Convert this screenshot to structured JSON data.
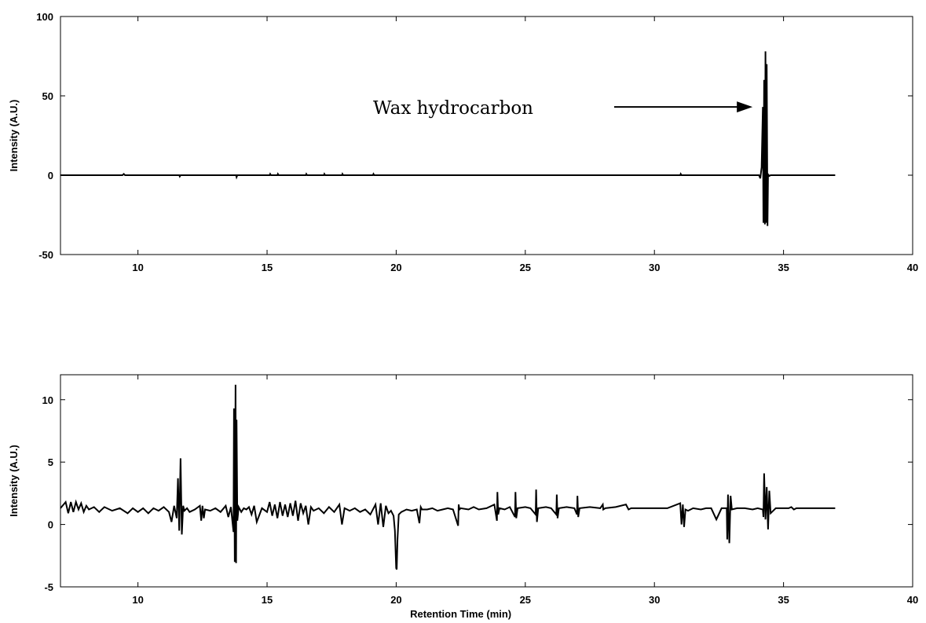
{
  "chart_data": [
    {
      "type": "line",
      "title": "",
      "xlabel": "",
      "ylabel": "Intensity (A.U.)",
      "xlim": [
        7,
        40
      ],
      "ylim": [
        -50,
        100
      ],
      "xticks": [
        10,
        15,
        20,
        25,
        30,
        35,
        40
      ],
      "xtick_labels": [
        "10",
        "15",
        "20",
        "25",
        "30",
        "35",
        "40"
      ],
      "yticks": [
        -50,
        0,
        50,
        100
      ],
      "ytick_labels": [
        "-50",
        "0",
        "50",
        "100"
      ],
      "grid": false,
      "annotations": [
        {
          "text": "Wax hydrocarbon",
          "arrow_to": {
            "x": 33.8,
            "y": 43
          }
        }
      ],
      "series": [
        {
          "x": [
            7.0,
            9.4,
            9.45,
            9.5,
            11.6,
            11.62,
            11.65,
            13.8,
            13.82,
            13.85,
            15.1,
            15.12,
            15.15,
            15.4,
            15.42,
            15.45,
            16.5,
            16.52,
            16.55,
            17.2,
            17.22,
            17.25,
            17.9,
            17.92,
            17.95,
            19.1,
            19.12,
            19.15,
            31.0,
            31.02,
            31.05,
            34.05,
            34.1,
            34.15,
            34.2,
            34.22,
            34.25,
            34.28,
            34.3,
            34.33,
            34.35,
            34.38,
            34.4,
            34.45,
            34.5,
            37.0
          ],
          "values": [
            0,
            0,
            0.8,
            0,
            0,
            -0.8,
            0,
            0,
            -1.2,
            0,
            0,
            0.8,
            0,
            0,
            0.8,
            0,
            0,
            0.8,
            0,
            0,
            0.8,
            0,
            0,
            0.8,
            0,
            0,
            0.8,
            0,
            0,
            0.8,
            0,
            0,
            -2,
            5,
            43,
            -30,
            60,
            -31,
            78,
            -30,
            70,
            -32,
            0.5,
            -0.5,
            0,
            0
          ]
        }
      ]
    },
    {
      "type": "line",
      "title": "",
      "xlabel": "Retention Time (min)",
      "ylabel": "Intensity (A.U.)",
      "xlim": [
        7,
        40
      ],
      "ylim": [
        -5,
        12
      ],
      "xticks": [
        10,
        15,
        20,
        25,
        30,
        35,
        40
      ],
      "xtick_labels": [
        "10",
        "15",
        "20",
        "25",
        "30",
        "35",
        "40"
      ],
      "yticks": [
        -5,
        0,
        5,
        10
      ],
      "ytick_labels": [
        "-5",
        "0",
        "5",
        "10"
      ],
      "grid": false,
      "series": [
        {
          "x": [
            7.0,
            7.2,
            7.3,
            7.4,
            7.5,
            7.6,
            7.7,
            7.8,
            7.9,
            8.0,
            8.1,
            8.3,
            8.5,
            8.7,
            9.0,
            9.3,
            9.6,
            9.8,
            10.0,
            10.2,
            10.4,
            10.6,
            10.8,
            11.0,
            11.2,
            11.3,
            11.4,
            11.5,
            11.55,
            11.6,
            11.65,
            11.7,
            11.75,
            11.8,
            11.9,
            12.0,
            12.2,
            12.4,
            12.45,
            12.5,
            12.55,
            12.6,
            12.8,
            13.0,
            13.2,
            13.4,
            13.5,
            13.6,
            13.7,
            13.72,
            13.75,
            13.78,
            13.8,
            13.82,
            13.85,
            13.9,
            14.0,
            14.1,
            14.2,
            14.3,
            14.4,
            14.5,
            14.6,
            14.8,
            15.0,
            15.1,
            15.2,
            15.3,
            15.4,
            15.5,
            15.6,
            15.7,
            15.8,
            15.9,
            16.0,
            16.1,
            16.2,
            16.3,
            16.4,
            16.5,
            16.6,
            16.7,
            16.8,
            17.0,
            17.2,
            17.4,
            17.6,
            17.8,
            17.9,
            18.0,
            18.2,
            18.4,
            18.6,
            18.8,
            19.0,
            19.2,
            19.3,
            19.4,
            19.5,
            19.6,
            19.7,
            19.8,
            19.9,
            19.95,
            20.0,
            20.02,
            20.05,
            20.1,
            20.2,
            20.4,
            20.6,
            20.8,
            20.9,
            20.95,
            21.0,
            21.2,
            21.4,
            21.6,
            21.8,
            22.0,
            22.2,
            22.4,
            22.42,
            22.45,
            22.5,
            22.8,
            23.0,
            23.2,
            23.5,
            23.8,
            23.9,
            23.92,
            23.95,
            24.0,
            24.2,
            24.4,
            24.6,
            24.62,
            24.65,
            24.7,
            25.0,
            25.2,
            25.4,
            25.42,
            25.45,
            25.5,
            25.8,
            26.0,
            26.2,
            26.22,
            26.25,
            26.3,
            26.6,
            26.9,
            27.0,
            27.02,
            27.05,
            27.1,
            27.5,
            27.9,
            28.0,
            28.02,
            28.1,
            28.5,
            28.9,
            29.0,
            29.1,
            29.5,
            30.0,
            30.5,
            31.0,
            31.05,
            31.1,
            31.15,
            31.2,
            31.3,
            31.5,
            31.8,
            32.0,
            32.2,
            32.4,
            32.6,
            32.8,
            32.82,
            32.85,
            32.9,
            32.95,
            33.0,
            33.2,
            33.5,
            33.8,
            34.0,
            34.2,
            34.22,
            34.25,
            34.3,
            34.35,
            34.4,
            34.45,
            34.5,
            34.7,
            35.0,
            35.2,
            35.3,
            35.4,
            35.5,
            36.0,
            36.5,
            37.0
          ],
          "values": [
            1.3,
            1.8,
            0.9,
            1.8,
            1.0,
            1.8,
            1.2,
            1.7,
            1.0,
            1.5,
            1.2,
            1.4,
            1.0,
            1.4,
            1.1,
            1.3,
            0.9,
            1.3,
            1.0,
            1.3,
            0.9,
            1.3,
            1.1,
            1.4,
            1.0,
            0.2,
            1.5,
            0.5,
            3.7,
            -0.5,
            5.3,
            -0.8,
            1.5,
            1.1,
            1.3,
            1.0,
            1.2,
            1.5,
            0.3,
            1.5,
            0.5,
            1.2,
            1.1,
            1.3,
            1.0,
            1.5,
            0.6,
            1.4,
            -0.6,
            9.3,
            -3.0,
            11.2,
            -3.1,
            8.4,
            0.3,
            1.4,
            1.0,
            1.3,
            1.2,
            1.4,
            0.8,
            1.5,
            0.2,
            1.3,
            1.0,
            1.8,
            0.7,
            1.6,
            0.5,
            1.8,
            0.7,
            1.6,
            0.6,
            1.7,
            0.7,
            1.9,
            0.3,
            1.7,
            0.9,
            1.5,
            0.0,
            1.4,
            1.1,
            1.3,
            0.9,
            1.4,
            1.0,
            1.6,
            0.0,
            1.3,
            1.1,
            1.3,
            1.0,
            1.2,
            0.8,
            1.6,
            0.0,
            1.7,
            -0.2,
            1.5,
            0.9,
            1.1,
            0.7,
            -0.5,
            -3.5,
            -3.6,
            -1.2,
            0.8,
            1.0,
            1.2,
            1.1,
            1.2,
            0.1,
            1.4,
            1.2,
            1.2,
            1.3,
            1.1,
            1.2,
            1.3,
            1.2,
            -0.1,
            1.6,
            1.2,
            1.3,
            1.2,
            1.4,
            1.2,
            1.3,
            1.6,
            0.3,
            2.6,
            0.8,
            1.3,
            1.2,
            1.4,
            0.6,
            2.6,
            0.5,
            1.3,
            1.4,
            1.3,
            0.8,
            2.8,
            0.2,
            1.3,
            1.4,
            1.3,
            0.8,
            2.4,
            0.5,
            1.3,
            1.4,
            1.3,
            0.8,
            2.3,
            0.6,
            1.3,
            1.4,
            1.3,
            1.6,
            1.2,
            1.3,
            1.4,
            1.6,
            1.2,
            1.3,
            1.3,
            1.3,
            1.3,
            1.7,
            0.0,
            1.6,
            -0.2,
            1.2,
            1.1,
            1.3,
            1.2,
            1.3,
            1.3,
            0.4,
            1.3,
            1.3,
            -1.2,
            2.4,
            -1.5,
            2.3,
            1.2,
            1.3,
            1.3,
            1.2,
            1.3,
            1.2,
            0.6,
            4.1,
            0.4,
            3.0,
            -0.4,
            2.7,
            0.9,
            1.3,
            1.3,
            1.3,
            1.4,
            1.2,
            1.3,
            1.3,
            1.3,
            1.3
          ]
        }
      ]
    }
  ]
}
